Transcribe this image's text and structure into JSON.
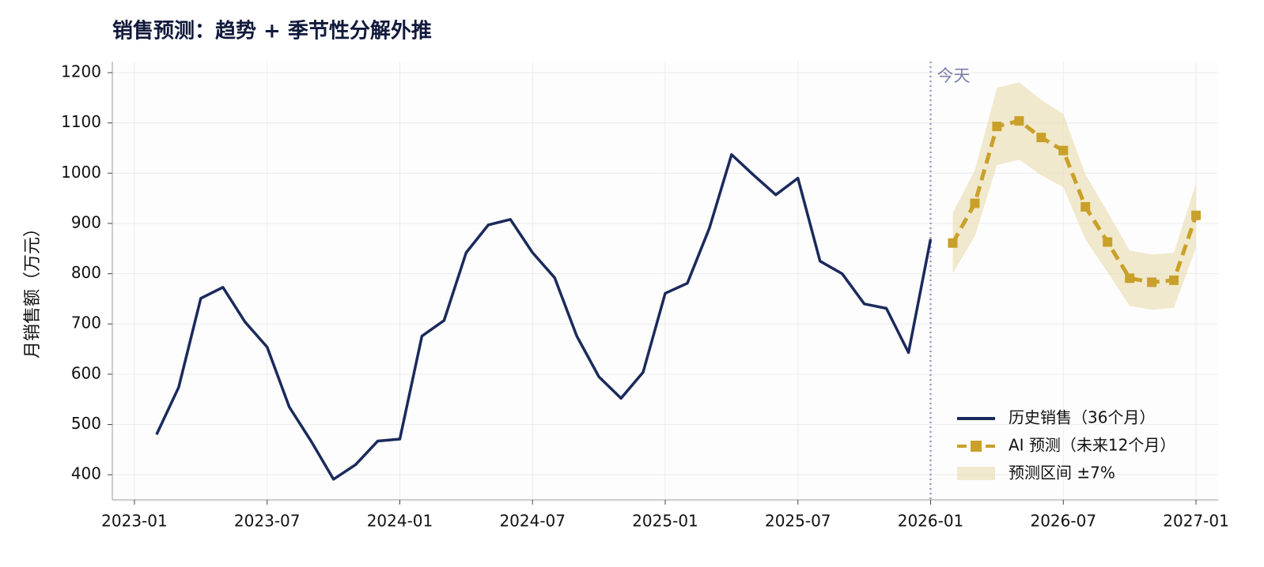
{
  "chart_data": {
    "type": "line",
    "title": "销售预测：趋势 + 季节性分解外推",
    "y_label": "月销售额（万元）",
    "ylim": [
      350,
      1222
    ],
    "yticks": [
      400,
      500,
      600,
      700,
      800,
      900,
      1000,
      1100,
      1200
    ],
    "xlim": [
      "2022-12",
      "2027-02"
    ],
    "xticks": [
      "2023-01",
      "2023-07",
      "2024-01",
      "2024-07",
      "2025-01",
      "2025-07",
      "2026-01",
      "2026-07",
      "2027-01"
    ],
    "grid": true,
    "legend": "lower right",
    "series": [
      {
        "name": "历史销售（36个月）",
        "color": "#1b2a5c",
        "x": [
          "2023-02",
          "2023-03",
          "2023-04",
          "2023-05",
          "2023-06",
          "2023-07",
          "2023-08",
          "2023-09",
          "2023-10",
          "2023-11",
          "2023-12",
          "2024-01",
          "2024-02",
          "2024-03",
          "2024-04",
          "2024-05",
          "2024-06",
          "2024-07",
          "2024-08",
          "2024-09",
          "2024-10",
          "2024-11",
          "2024-12",
          "2025-01",
          "2025-02",
          "2025-03",
          "2025-04",
          "2025-05",
          "2025-06",
          "2025-07",
          "2025-08",
          "2025-09",
          "2025-10",
          "2025-11",
          "2025-12",
          "2026-01"
        ],
        "values": [
          480,
          574,
          751,
          773,
          704,
          654,
          535,
          466,
          391,
          420,
          467,
          471,
          676,
          707,
          842,
          897,
          908,
          842,
          792,
          676,
          595,
          552,
          604,
          761,
          781,
          891,
          1037,
          996,
          957,
          990,
          825,
          800,
          740,
          731,
          643,
          869
        ]
      },
      {
        "name": "AI 预测（未来12个月）",
        "color": "#c9a02a",
        "marker": "square",
        "dashed": true,
        "x": [
          "2026-02",
          "2026-03",
          "2026-04",
          "2026-05",
          "2026-06",
          "2026-07",
          "2026-08",
          "2026-09",
          "2026-10",
          "2026-11",
          "2026-12",
          "2027-01"
        ],
        "values": [
          861,
          940,
          1093,
          1104,
          1071,
          1045,
          933,
          863,
          791,
          783,
          787,
          916
        ]
      }
    ],
    "band": {
      "name": "预测区间 ±7%",
      "color": "#e9dcae",
      "x": [
        "2026-02",
        "2026-03",
        "2026-04",
        "2026-05",
        "2026-06",
        "2026-07",
        "2026-08",
        "2026-09",
        "2026-10",
        "2026-11",
        "2026-12",
        "2027-01"
      ],
      "lower": [
        801,
        874,
        1016,
        1027,
        996,
        972,
        868,
        803,
        736,
        728,
        732,
        852
      ],
      "upper": [
        921,
        1006,
        1170,
        1181,
        1146,
        1118,
        998,
        923,
        846,
        838,
        842,
        980
      ]
    },
    "annotation": {
      "text": "今天",
      "x": "2026-01",
      "color": "#9a9ad0"
    }
  }
}
